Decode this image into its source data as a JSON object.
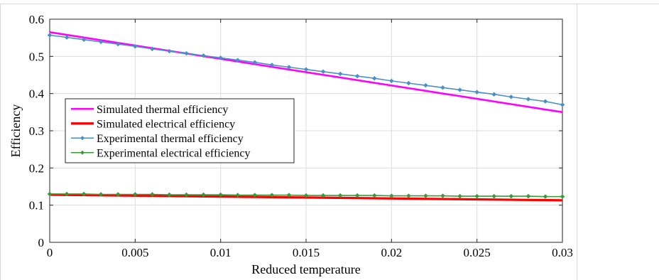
{
  "chart_data": {
    "type": "line",
    "xlabel": "Reduced temperature",
    "ylabel": "Efficiency",
    "xlim": [
      0,
      0.03
    ],
    "ylim": [
      0,
      0.6
    ],
    "xticks": [
      0,
      0.005,
      0.01,
      0.015,
      0.02,
      0.025,
      0.03
    ],
    "xtick_labels": [
      "0",
      "0.005",
      "0.01",
      "0.015",
      "0.02",
      "0.025",
      "0.03"
    ],
    "yticks": [
      0,
      0.1,
      0.2,
      0.3,
      0.4,
      0.5,
      0.6
    ],
    "ytick_labels": [
      "0",
      "0.1",
      "0.2",
      "0.3",
      "0.4",
      "0.5",
      "0.6"
    ],
    "grid": true,
    "legend_position": "middle-left",
    "series": [
      {
        "name": "Simulated thermal efficiency",
        "color": "#ff00ff",
        "marker": "none",
        "x": [
          0,
          0.03
        ],
        "y": [
          0.565,
          0.35
        ]
      },
      {
        "name": "Simulated electrical efficiency",
        "color": "#ff0000",
        "marker": "none",
        "x": [
          0,
          0.03
        ],
        "y": [
          0.128,
          0.113
        ]
      },
      {
        "name": "Experimental thermal efficiency",
        "color": "#4a90c8",
        "marker": "diamond",
        "x": [
          0,
          0.001,
          0.002,
          0.003,
          0.004,
          0.005,
          0.006,
          0.007,
          0.008,
          0.009,
          0.01,
          0.011,
          0.012,
          0.013,
          0.014,
          0.015,
          0.016,
          0.017,
          0.018,
          0.019,
          0.02,
          0.021,
          0.022,
          0.023,
          0.024,
          0.025,
          0.026,
          0.027,
          0.028,
          0.029,
          0.03
        ],
        "y": [
          0.557,
          0.551,
          0.545,
          0.539,
          0.533,
          0.527,
          0.52,
          0.514,
          0.508,
          0.502,
          0.496,
          0.49,
          0.484,
          0.477,
          0.471,
          0.465,
          0.459,
          0.453,
          0.447,
          0.441,
          0.434,
          0.428,
          0.422,
          0.416,
          0.41,
          0.404,
          0.398,
          0.391,
          0.385,
          0.379,
          0.37
        ]
      },
      {
        "name": "Experimental electrical efficiency",
        "color": "#3a9a3a",
        "marker": "diamond",
        "x": [
          0,
          0.001,
          0.002,
          0.003,
          0.004,
          0.005,
          0.006,
          0.007,
          0.008,
          0.009,
          0.01,
          0.011,
          0.012,
          0.013,
          0.014,
          0.015,
          0.016,
          0.017,
          0.018,
          0.019,
          0.02,
          0.021,
          0.022,
          0.023,
          0.024,
          0.025,
          0.026,
          0.027,
          0.028,
          0.029,
          0.03
        ],
        "y": [
          0.13,
          0.13,
          0.13,
          0.129,
          0.129,
          0.129,
          0.129,
          0.128,
          0.128,
          0.128,
          0.128,
          0.127,
          0.127,
          0.127,
          0.127,
          0.126,
          0.126,
          0.126,
          0.126,
          0.126,
          0.125,
          0.125,
          0.125,
          0.125,
          0.124,
          0.124,
          0.124,
          0.124,
          0.124,
          0.123,
          0.123
        ]
      }
    ]
  }
}
